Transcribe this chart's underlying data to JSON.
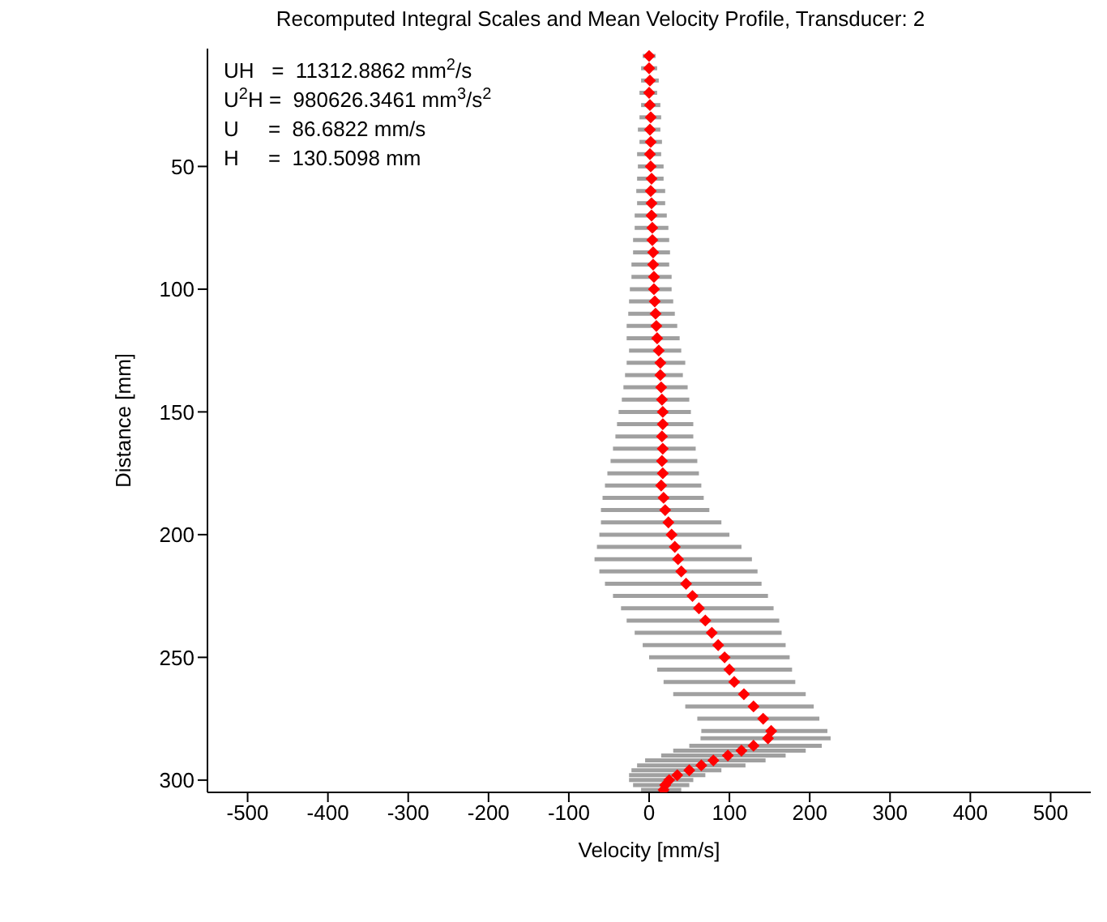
{
  "chart_data": {
    "type": "scatter",
    "title": "Recomputed Integral Scales and Mean Velocity Profile, Transducer: 2",
    "xlabel": "Velocity [mm/s]",
    "ylabel": "Distance [mm]",
    "annotations": [
      "UH   =  11312.8862 mm$^{2}$/s",
      "U$^{2}$H =  980626.3461 mm$^{3}$/s$^{2}$",
      "U     =  86.6822 mm/s",
      "H     =  130.5098 mm"
    ],
    "xlim": [
      -550,
      550
    ],
    "xticks": [
      -500,
      -400,
      -300,
      -200,
      -100,
      0,
      100,
      200,
      300,
      400,
      500
    ],
    "ylim": [
      305,
      2
    ],
    "yticks": [
      50,
      100,
      150,
      200,
      250,
      300
    ],
    "grid": false,
    "legend": false,
    "marker": "diamond",
    "series": [
      {
        "color": "#ff0000",
        "x": [
          0,
          0,
          1,
          0,
          1,
          2,
          1,
          2,
          1,
          2,
          3,
          2,
          3,
          3,
          4,
          4,
          5,
          5,
          6,
          6,
          7,
          8,
          9,
          10,
          12,
          14,
          14,
          15,
          16,
          17,
          17,
          16,
          17,
          16,
          17,
          15,
          18,
          20,
          24,
          28,
          32,
          36,
          40,
          46,
          54,
          62,
          70,
          78,
          86,
          94,
          100,
          106,
          118,
          130,
          142,
          152,
          148,
          130,
          115,
          98,
          80,
          65,
          50,
          35,
          25,
          20,
          18
        ],
        "values": [
          5,
          10,
          15,
          20,
          25,
          30,
          35,
          40,
          45,
          50,
          55,
          60,
          65,
          70,
          75,
          80,
          85,
          90,
          95,
          100,
          105,
          110,
          115,
          120,
          125,
          130,
          135,
          140,
          145,
          150,
          155,
          160,
          165,
          170,
          175,
          180,
          185,
          190,
          195,
          200,
          205,
          210,
          215,
          220,
          225,
          230,
          235,
          240,
          245,
          250,
          255,
          260,
          265,
          270,
          275,
          280,
          283,
          286,
          288,
          290,
          292,
          294,
          296,
          298,
          300,
          302,
          304
        ],
        "xerrors": [
          [
            -8,
            8
          ],
          [
            -10,
            10
          ],
          [
            -10,
            12
          ],
          [
            -12,
            10
          ],
          [
            -10,
            14
          ],
          [
            -12,
            15
          ],
          [
            -14,
            14
          ],
          [
            -12,
            16
          ],
          [
            -15,
            15
          ],
          [
            -14,
            18
          ],
          [
            -15,
            18
          ],
          [
            -16,
            20
          ],
          [
            -15,
            20
          ],
          [
            -18,
            22
          ],
          [
            -18,
            24
          ],
          [
            -20,
            25
          ],
          [
            -20,
            26
          ],
          [
            -22,
            25
          ],
          [
            -22,
            28
          ],
          [
            -24,
            28
          ],
          [
            -25,
            30
          ],
          [
            -26,
            32
          ],
          [
            -28,
            35
          ],
          [
            -28,
            38
          ],
          [
            -25,
            40
          ],
          [
            -28,
            45
          ],
          [
            -30,
            42
          ],
          [
            -32,
            48
          ],
          [
            -34,
            50
          ],
          [
            -38,
            52
          ],
          [
            -40,
            55
          ],
          [
            -42,
            55
          ],
          [
            -45,
            58
          ],
          [
            -48,
            60
          ],
          [
            -52,
            62
          ],
          [
            -55,
            65
          ],
          [
            -58,
            68
          ],
          [
            -60,
            75
          ],
          [
            -60,
            90
          ],
          [
            -62,
            100
          ],
          [
            -65,
            115
          ],
          [
            -68,
            128
          ],
          [
            -62,
            135
          ],
          [
            -55,
            140
          ],
          [
            -45,
            148
          ],
          [
            -35,
            155
          ],
          [
            -28,
            162
          ],
          [
            -18,
            165
          ],
          [
            -8,
            170
          ],
          [
            0,
            175
          ],
          [
            10,
            178
          ],
          [
            18,
            182
          ],
          [
            30,
            195
          ],
          [
            45,
            205
          ],
          [
            60,
            212
          ],
          [
            65,
            222
          ],
          [
            64,
            226
          ],
          [
            50,
            215
          ],
          [
            30,
            195
          ],
          [
            15,
            170
          ],
          [
            -5,
            145
          ],
          [
            -15,
            120
          ],
          [
            -22,
            90
          ],
          [
            -25,
            70
          ],
          [
            -25,
            55
          ],
          [
            -20,
            50
          ],
          [
            -10,
            40
          ]
        ]
      }
    ]
  }
}
